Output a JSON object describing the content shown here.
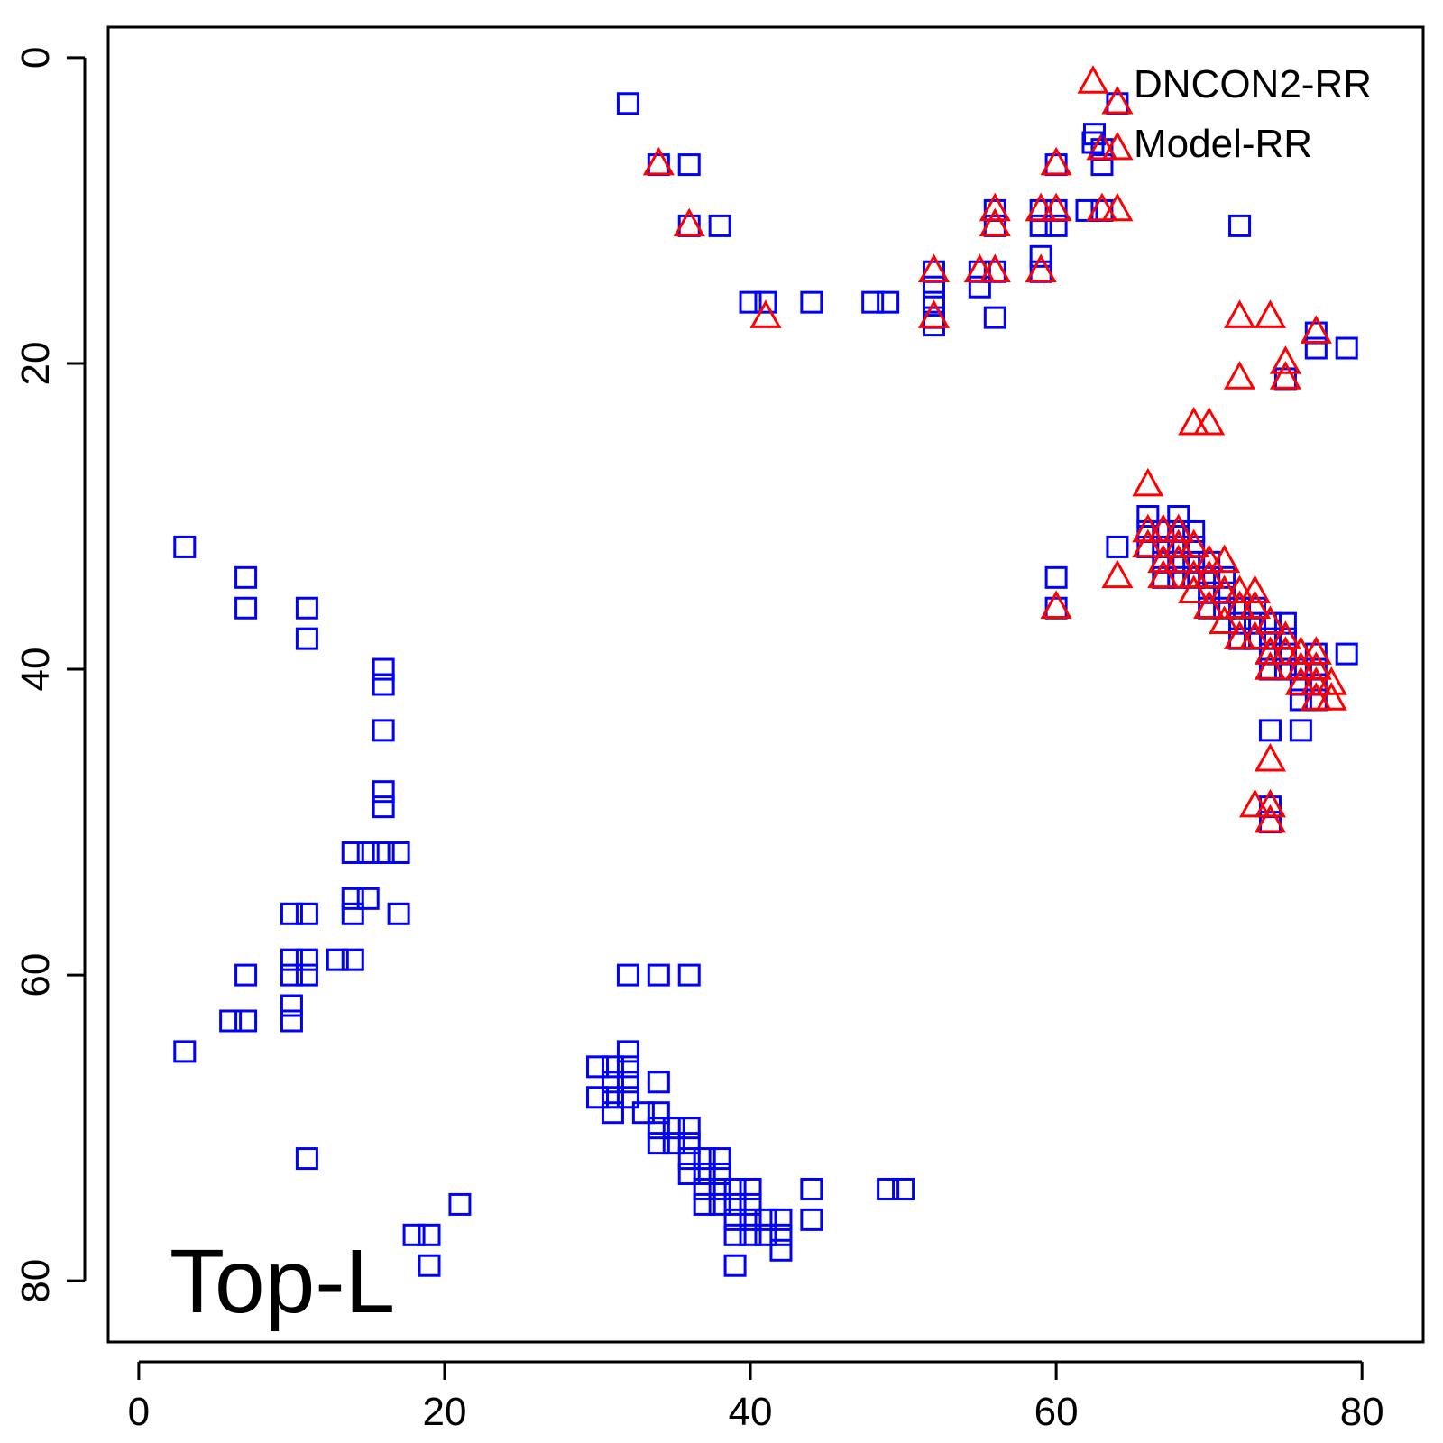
{
  "chart_data": {
    "type": "scatter",
    "xlim": [
      -2,
      84
    ],
    "ylim": [
      84,
      -2
    ],
    "y_axis_reversed": true,
    "x_ticks": [
      0,
      20,
      40,
      60,
      80
    ],
    "y_ticks": [
      0,
      20,
      40,
      60,
      80
    ],
    "grid": false,
    "legend_position": "top-right",
    "annotation": "Top-L",
    "colors": {
      "DNCON2-RR": "#ff0000",
      "Model-RR": "#0000ff"
    },
    "series": [
      {
        "name": "Model-RR",
        "marker": "square",
        "points": [
          [
            32,
            3
          ],
          [
            34,
            7
          ],
          [
            36,
            7
          ],
          [
            36,
            11
          ],
          [
            38,
            11
          ],
          [
            40,
            16
          ],
          [
            41,
            16
          ],
          [
            44,
            16
          ],
          [
            48,
            16
          ],
          [
            49,
            16
          ],
          [
            52,
            14
          ],
          [
            52,
            15
          ],
          [
            52,
            16
          ],
          [
            52,
            17
          ],
          [
            52,
            17.5
          ],
          [
            55,
            14
          ],
          [
            55,
            15
          ],
          [
            56,
            10
          ],
          [
            56,
            11
          ],
          [
            56,
            14
          ],
          [
            56,
            17
          ],
          [
            59,
            10
          ],
          [
            59,
            11
          ],
          [
            59,
            13
          ],
          [
            59,
            14
          ],
          [
            60,
            7
          ],
          [
            60,
            10
          ],
          [
            60,
            11
          ],
          [
            62,
            10
          ],
          [
            62.5,
            5
          ],
          [
            63,
            6
          ],
          [
            63,
            7
          ],
          [
            63,
            10
          ],
          [
            64,
            3
          ],
          [
            72,
            11
          ],
          [
            77,
            18
          ],
          [
            77,
            19
          ],
          [
            79,
            19
          ],
          [
            75,
            21
          ],
          [
            66,
            30
          ],
          [
            66,
            31
          ],
          [
            66,
            32
          ],
          [
            67,
            31
          ],
          [
            67,
            32
          ],
          [
            67,
            33
          ],
          [
            67,
            34
          ],
          [
            68,
            30
          ],
          [
            68,
            31
          ],
          [
            68,
            32
          ],
          [
            68,
            33
          ],
          [
            68,
            34
          ],
          [
            69,
            31
          ],
          [
            69,
            32
          ],
          [
            69,
            33
          ],
          [
            69,
            34
          ],
          [
            70,
            33
          ],
          [
            70,
            34
          ],
          [
            70,
            35
          ],
          [
            70,
            36
          ],
          [
            71,
            34
          ],
          [
            71,
            35
          ],
          [
            71,
            36
          ],
          [
            72,
            36
          ],
          [
            72,
            37
          ],
          [
            72,
            38
          ],
          [
            73,
            36
          ],
          [
            73,
            37
          ],
          [
            73,
            38
          ],
          [
            74,
            37
          ],
          [
            74,
            38
          ],
          [
            74,
            39
          ],
          [
            74,
            40
          ],
          [
            75,
            37
          ],
          [
            75,
            38
          ],
          [
            75,
            39
          ],
          [
            75,
            40
          ],
          [
            76,
            40
          ],
          [
            76,
            41
          ],
          [
            76,
            42
          ],
          [
            77,
            39
          ],
          [
            77,
            40
          ],
          [
            77,
            41
          ],
          [
            77,
            42
          ],
          [
            79,
            39
          ],
          [
            74,
            44
          ],
          [
            76,
            44
          ],
          [
            74,
            49
          ],
          [
            74,
            50
          ],
          [
            64,
            32
          ],
          [
            60,
            34
          ],
          [
            60,
            36
          ],
          [
            3,
            32
          ],
          [
            7,
            34
          ],
          [
            7,
            36
          ],
          [
            11,
            36
          ],
          [
            11,
            38
          ],
          [
            16,
            40
          ],
          [
            16,
            41
          ],
          [
            16,
            44
          ],
          [
            16,
            48
          ],
          [
            16,
            49
          ],
          [
            14,
            52
          ],
          [
            15,
            52
          ],
          [
            16,
            52
          ],
          [
            17,
            52
          ],
          [
            14,
            55
          ],
          [
            15,
            55
          ],
          [
            14,
            56
          ],
          [
            17,
            56
          ],
          [
            10,
            56
          ],
          [
            11,
            56
          ],
          [
            10,
            59
          ],
          [
            10,
            60
          ],
          [
            11,
            59
          ],
          [
            11,
            60
          ],
          [
            13,
            59
          ],
          [
            14,
            59
          ],
          [
            7,
            60
          ],
          [
            10,
            62
          ],
          [
            10,
            63
          ],
          [
            6,
            63
          ],
          [
            7,
            63
          ],
          [
            3,
            65
          ],
          [
            11,
            72
          ],
          [
            21,
            75
          ],
          [
            18,
            77
          ],
          [
            19,
            77
          ],
          [
            19,
            79
          ],
          [
            32,
            60
          ],
          [
            34,
            60
          ],
          [
            36,
            60
          ],
          [
            32,
            65
          ],
          [
            30,
            66
          ],
          [
            31,
            66
          ],
          [
            32,
            66
          ],
          [
            30,
            68
          ],
          [
            31,
            68
          ],
          [
            32,
            68
          ],
          [
            31,
            67
          ],
          [
            32,
            67
          ],
          [
            34,
            67
          ],
          [
            31,
            69
          ],
          [
            33,
            69
          ],
          [
            34,
            69
          ],
          [
            34,
            70
          ],
          [
            35,
            70
          ],
          [
            36,
            70
          ],
          [
            34,
            71
          ],
          [
            35,
            71
          ],
          [
            36,
            71
          ],
          [
            36,
            72
          ],
          [
            37,
            72
          ],
          [
            38,
            72
          ],
          [
            36,
            73
          ],
          [
            37,
            73
          ],
          [
            38,
            73
          ],
          [
            37,
            74
          ],
          [
            38,
            74
          ],
          [
            39,
            74
          ],
          [
            40,
            74
          ],
          [
            37,
            75
          ],
          [
            38,
            75
          ],
          [
            39,
            75
          ],
          [
            40,
            75
          ],
          [
            39,
            76
          ],
          [
            40,
            76
          ],
          [
            41,
            76
          ],
          [
            42,
            76
          ],
          [
            39,
            77
          ],
          [
            40,
            77
          ],
          [
            41,
            77
          ],
          [
            42,
            77
          ],
          [
            42,
            78
          ],
          [
            39,
            79
          ],
          [
            44,
            74
          ],
          [
            44,
            76
          ],
          [
            49,
            74
          ],
          [
            50,
            74
          ]
        ]
      },
      {
        "name": "DNCON2-RR",
        "marker": "triangle",
        "points": [
          [
            64,
            3
          ],
          [
            64,
            6
          ],
          [
            64,
            10
          ],
          [
            63,
            6
          ],
          [
            63,
            10
          ],
          [
            60,
            7
          ],
          [
            60,
            10
          ],
          [
            59,
            10
          ],
          [
            59,
            14
          ],
          [
            56,
            10
          ],
          [
            56,
            11
          ],
          [
            56,
            14
          ],
          [
            55,
            14
          ],
          [
            52,
            14
          ],
          [
            52,
            17
          ],
          [
            41,
            17
          ],
          [
            36,
            11
          ],
          [
            34,
            7
          ],
          [
            72,
            17
          ],
          [
            74,
            17
          ],
          [
            77,
            18
          ],
          [
            75,
            20
          ],
          [
            75,
            21
          ],
          [
            72,
            21
          ],
          [
            69,
            24
          ],
          [
            70,
            24
          ],
          [
            66,
            28
          ],
          [
            64,
            34
          ],
          [
            66,
            31
          ],
          [
            66,
            32
          ],
          [
            67,
            31
          ],
          [
            67,
            33
          ],
          [
            67,
            34
          ],
          [
            68,
            31
          ],
          [
            68,
            32
          ],
          [
            68,
            33
          ],
          [
            69,
            32
          ],
          [
            69,
            34
          ],
          [
            69,
            35
          ],
          [
            70,
            33
          ],
          [
            70,
            34
          ],
          [
            70,
            36
          ],
          [
            71,
            33
          ],
          [
            71,
            35
          ],
          [
            71,
            37
          ],
          [
            72,
            35
          ],
          [
            72,
            36
          ],
          [
            72,
            38
          ],
          [
            73,
            35
          ],
          [
            73,
            36
          ],
          [
            73,
            38
          ],
          [
            74,
            37
          ],
          [
            74,
            39
          ],
          [
            74,
            40
          ],
          [
            75,
            38
          ],
          [
            75,
            39
          ],
          [
            76,
            39
          ],
          [
            76,
            40
          ],
          [
            76,
            41
          ],
          [
            77,
            39
          ],
          [
            77,
            40
          ],
          [
            77,
            41
          ],
          [
            77,
            42
          ],
          [
            78,
            41
          ],
          [
            78,
            42
          ],
          [
            74,
            46
          ],
          [
            73,
            49
          ],
          [
            74,
            49
          ],
          [
            74,
            50
          ],
          [
            60,
            36
          ]
        ]
      }
    ]
  }
}
